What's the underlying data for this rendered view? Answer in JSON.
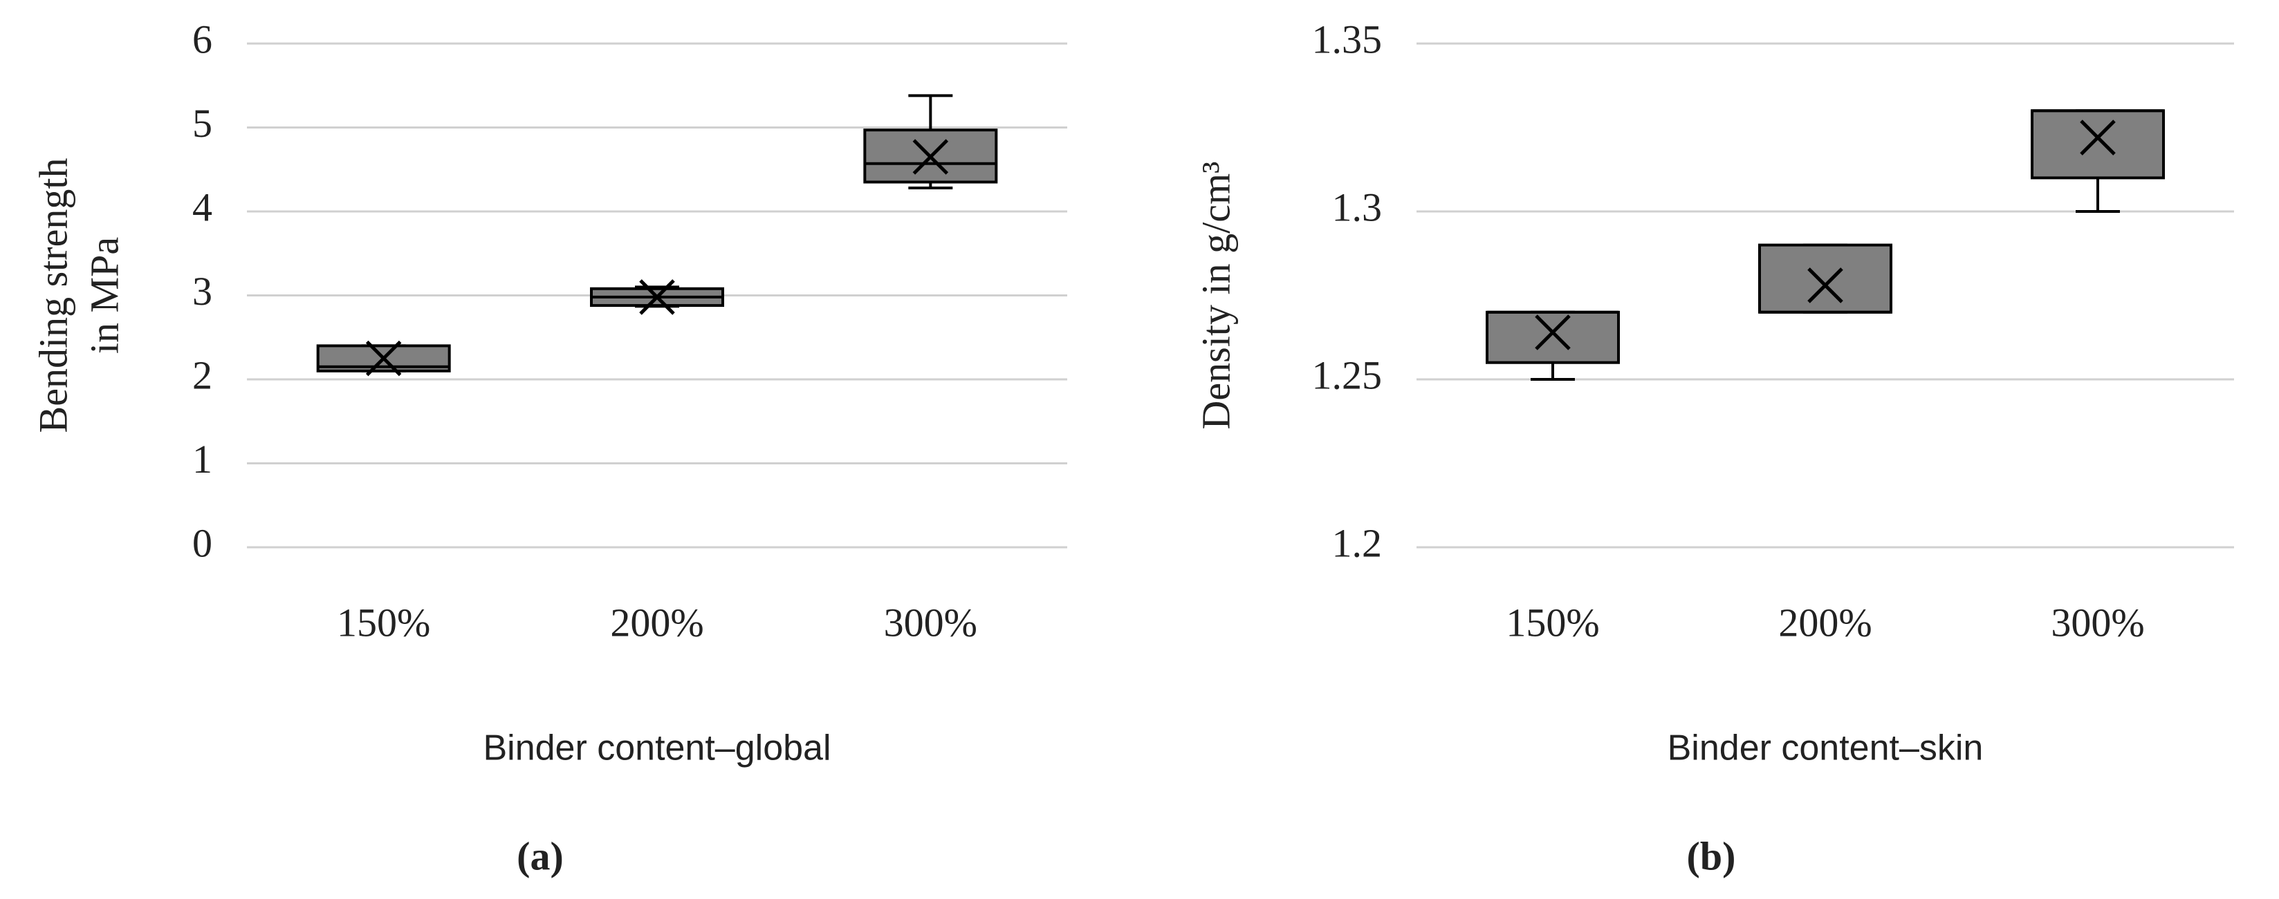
{
  "chart_data": [
    {
      "type": "box",
      "panel_label": "(a)",
      "ylabel": [
        "Bending strength",
        "in MPa"
      ],
      "xlabel": "Binder content–global",
      "categories": [
        "150%",
        "200%",
        "300%"
      ],
      "boxes": [
        {
          "min": 2.1,
          "q1": 2.1,
          "median": 2.15,
          "q3": 2.4,
          "max": 2.4,
          "mean": 2.25
        },
        {
          "min": 2.87,
          "q1": 2.88,
          "median": 2.98,
          "q3": 3.08,
          "max": 3.1,
          "mean": 2.98
        },
        {
          "min": 4.28,
          "q1": 4.35,
          "median": 4.57,
          "q3": 4.97,
          "max": 5.38,
          "mean": 4.65
        }
      ],
      "color": "#808080",
      "ylim": [
        0,
        6
      ],
      "yticks": [
        0,
        1,
        2,
        3,
        4,
        5,
        6
      ],
      "grid": true
    },
    {
      "type": "box",
      "panel_label": "(b)",
      "ylabel": [
        "Density in g/cm³"
      ],
      "xlabel": "Binder content–skin",
      "categories": [
        "150%",
        "200%",
        "300%"
      ],
      "boxes": [
        {
          "min": 1.25,
          "q1": 1.255,
          "median": 1.27,
          "q3": 1.27,
          "max": 1.27,
          "mean": 1.264
        },
        {
          "min": 1.27,
          "q1": 1.27,
          "median": 1.27,
          "q3": 1.29,
          "max": 1.29,
          "mean": 1.278
        },
        {
          "min": 1.3,
          "q1": 1.31,
          "median": 1.33,
          "q3": 1.33,
          "max": 1.33,
          "mean": 1.322
        }
      ],
      "color": "#808080",
      "ylim": [
        1.2,
        1.35
      ],
      "yticks": [
        1.2,
        1.25,
        1.3,
        1.35
      ],
      "grid": true
    }
  ]
}
